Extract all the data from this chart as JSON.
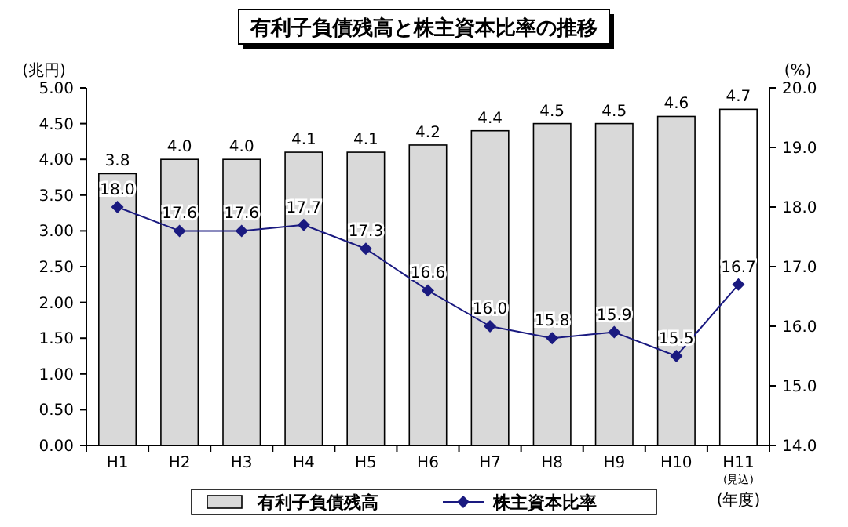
{
  "chart_data": {
    "type": "bar",
    "title": "有利子負債残高と株主資本比率の推移",
    "xlabel": "(年度)",
    "ylabel": "(兆円)",
    "y2label": "(%)",
    "categories": [
      "H1",
      "H2",
      "H3",
      "H4",
      "H5",
      "H6",
      "H7",
      "H8",
      "H9",
      "H10",
      "H11"
    ],
    "series": [
      {
        "name": "有利子負債残高",
        "color": "#d9d9d9",
        "colors": [
          "#d9d9d9",
          "#d9d9d9",
          "#d9d9d9",
          "#d9d9d9",
          "#d9d9d9",
          "#d9d9d9",
          "#d9d9d9",
          "#d9d9d9",
          "#d9d9d9",
          "#d9d9d9",
          "#ffffff"
        ],
        "values": [
          3.8,
          4.0,
          4.0,
          4.1,
          4.1,
          4.2,
          4.4,
          4.5,
          4.5,
          4.6,
          4.7
        ],
        "value_labels": [
          "3.8",
          "4.0",
          "4.0",
          "4.1",
          "4.1",
          "4.2",
          "4.4",
          "4.5",
          "4.5",
          "4.6",
          "4.7"
        ]
      },
      {
        "name": "株主資本比率",
        "type": "line",
        "axis": "y2",
        "color": "#1a1a80",
        "marker": "diamond",
        "values": [
          18.0,
          17.6,
          17.6,
          17.7,
          17.3,
          16.6,
          16.0,
          15.8,
          15.9,
          15.5,
          16.7
        ],
        "value_labels": [
          "18.0",
          "17.6",
          "17.6",
          "17.7",
          "17.3",
          "16.6",
          "16.0",
          "15.8",
          "15.9",
          "15.5",
          "16.7"
        ]
      }
    ],
    "ylim": [
      0,
      5
    ],
    "yticks": [
      {
        "value": 0,
        "label": "0.00"
      },
      {
        "value": 0.5,
        "label": "0.50"
      },
      {
        "value": 1,
        "label": "1.00"
      },
      {
        "value": 1.5,
        "label": "1.50"
      },
      {
        "value": 2,
        "label": "2.00"
      },
      {
        "value": 2.5,
        "label": "2.50"
      },
      {
        "value": 3,
        "label": "3.00"
      },
      {
        "value": 3.5,
        "label": "3.50"
      },
      {
        "value": 4,
        "label": "4.00"
      },
      {
        "value": 4.5,
        "label": "4.50"
      },
      {
        "value": 5,
        "label": "5.00"
      }
    ],
    "y2lim": [
      14,
      20
    ],
    "y2ticks": [
      {
        "value": 14,
        "label": "14.0"
      },
      {
        "value": 15,
        "label": "15.0"
      },
      {
        "value": 16,
        "label": "16.0"
      },
      {
        "value": 17,
        "label": "17.0"
      },
      {
        "value": 18,
        "label": "18.0"
      },
      {
        "value": 19,
        "label": "19.0"
      },
      {
        "value": 20,
        "label": "20.0"
      }
    ],
    "legend": "bottom",
    "annotations": [
      "(見込)"
    ]
  }
}
